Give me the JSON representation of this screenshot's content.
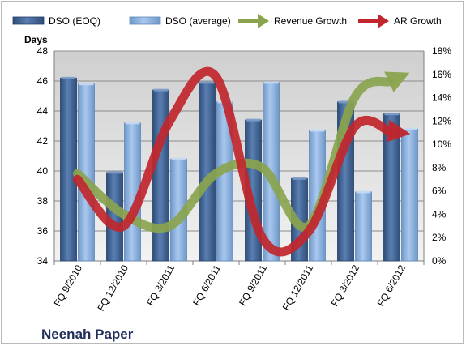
{
  "chart_data": {
    "type": "bar",
    "company": "Neenah Paper",
    "categories": [
      "FQ 9/2010",
      "FQ 12/2010",
      "FQ 3/2011",
      "FQ 6/2011",
      "FQ 9/2011",
      "FQ 12/2011",
      "FQ 3/2012",
      "FQ 6/2012"
    ],
    "ylabel": "Days",
    "ylim": [
      34,
      48
    ],
    "yticks": [
      34,
      36,
      38,
      40,
      42,
      44,
      46,
      48
    ],
    "y2lim": [
      0,
      18
    ],
    "y2ticks": [
      "0%",
      "2%",
      "4%",
      "6%",
      "8%",
      "10%",
      "12%",
      "14%",
      "16%",
      "18%"
    ],
    "grid": true,
    "legend_position": "top",
    "series": [
      {
        "name": "DSO (EOQ)",
        "type": "bar",
        "axis": "left",
        "color": "#4a6fa0",
        "values": [
          46.2,
          39.9,
          45.4,
          45.9,
          43.4,
          39.5,
          44.6,
          43.8
        ]
      },
      {
        "name": "DSO (average)",
        "type": "bar",
        "axis": "left",
        "color": "#8fb4e0",
        "values": [
          45.8,
          43.2,
          40.8,
          44.6,
          45.9,
          42.7,
          38.6,
          42.8
        ]
      },
      {
        "name": "Revenue Growth",
        "type": "line",
        "axis": "right",
        "unit": "%",
        "color": "#8aa44e",
        "values": [
          7.5,
          4.0,
          3.0,
          7.5,
          8.0,
          3.0,
          14.0,
          15.8
        ]
      },
      {
        "name": "AR Growth",
        "type": "line",
        "axis": "right",
        "unit": "%",
        "color": "#c0262d",
        "values": [
          7.0,
          3.0,
          12.0,
          15.8,
          2.0,
          2.5,
          11.5,
          11.0
        ]
      }
    ]
  }
}
